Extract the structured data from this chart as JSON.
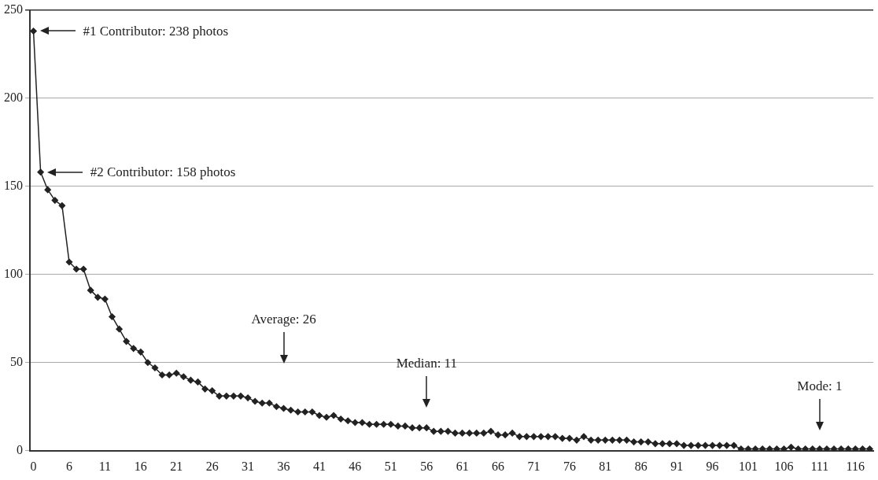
{
  "chart_data": {
    "type": "line",
    "categories": [
      "0",
      null,
      null,
      null,
      null,
      "6",
      null,
      null,
      null,
      null,
      "11",
      null,
      null,
      null,
      null,
      "16",
      null,
      null,
      null,
      null,
      "21",
      null,
      null,
      null,
      null,
      "26",
      null,
      null,
      null,
      null,
      "31",
      null,
      null,
      null,
      null,
      "36",
      null,
      null,
      null,
      null,
      "41",
      null,
      null,
      null,
      null,
      "46",
      null,
      null,
      null,
      null,
      "51",
      null,
      null,
      null,
      null,
      "56",
      null,
      null,
      null,
      null,
      "61",
      null,
      null,
      null,
      null,
      "66",
      null,
      null,
      null,
      null,
      "71",
      null,
      null,
      null,
      null,
      "76",
      null,
      null,
      null,
      null,
      "81",
      null,
      null,
      null,
      null,
      "86",
      null,
      null,
      null,
      null,
      "91",
      null,
      null,
      null,
      null,
      "96",
      null,
      null,
      null,
      null,
      "101",
      null,
      null,
      null,
      null,
      "106",
      null,
      null,
      null,
      null,
      "111",
      null,
      null,
      null,
      null,
      "116",
      null,
      null
    ],
    "series": [
      {
        "color": "#222222",
        "values": [
          238,
          158,
          148,
          142,
          139,
          107,
          103,
          103,
          91,
          87,
          86,
          76,
          69,
          62,
          58,
          56,
          50,
          47,
          43,
          43,
          44,
          42,
          40,
          39,
          35,
          34,
          31,
          31,
          31,
          31,
          30,
          28,
          27,
          27,
          25,
          24,
          23,
          22,
          22,
          22,
          20,
          19,
          20,
          18,
          17,
          16,
          16,
          15,
          15,
          15,
          15,
          14,
          14,
          13,
          13,
          13,
          11,
          11,
          11,
          10,
          10,
          10,
          10,
          10,
          11,
          9,
          9,
          10,
          8,
          8,
          8,
          8,
          8,
          8,
          7,
          7,
          6,
          8,
          6,
          6,
          6,
          6,
          6,
          6,
          5,
          5,
          5,
          4,
          4,
          4,
          4,
          3,
          3,
          3,
          3,
          3,
          3,
          3,
          3,
          1,
          1,
          1,
          1,
          1,
          1,
          1,
          2,
          1,
          1,
          1,
          1,
          1,
          1,
          1,
          1,
          1,
          1,
          1
        ]
      }
    ],
    "ylim": [
      0,
      250
    ],
    "yticks": [
      0,
      50,
      100,
      150,
      200,
      250
    ],
    "grid": "y",
    "legend": false,
    "marker": "diamond",
    "line_style": "solid",
    "annotations": [
      "#1 Contributor: 238 photos",
      "#2 Contributor: 158 photos",
      "Average: 26",
      "Median: 11",
      "Mode: 1"
    ]
  }
}
